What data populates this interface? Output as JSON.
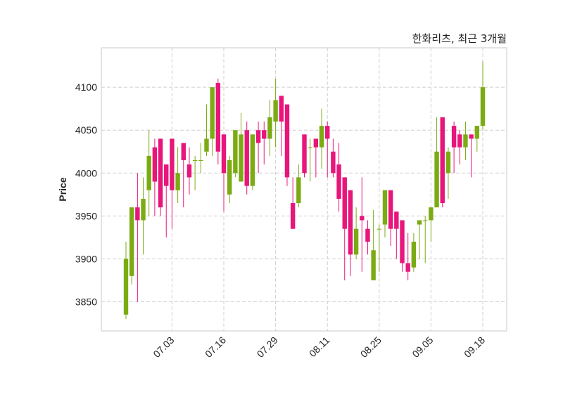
{
  "chart_data": {
    "type": "candlestick",
    "title": "한화리츠, 최근 3개월",
    "xlabel": "",
    "ylabel": "Price",
    "ylim": [
      3816,
      4146
    ],
    "yticks": [
      3850,
      3900,
      3950,
      4000,
      4050,
      4100
    ],
    "xtick_labels": [
      {
        "index": 8,
        "label": "07.03"
      },
      {
        "index": 17,
        "label": "07.16"
      },
      {
        "index": 26,
        "label": "07.29"
      },
      {
        "index": 35,
        "label": "08.11"
      },
      {
        "index": 44,
        "label": "08.25"
      },
      {
        "index": 53,
        "label": "09.05"
      },
      {
        "index": 62,
        "label": "09.18"
      }
    ],
    "grid": true,
    "colors": {
      "up": "#7bab12",
      "down": "#e8157b"
    },
    "candles_ohlc": [
      [
        3835,
        3920,
        3830,
        3900
      ],
      [
        3880,
        3960,
        3870,
        3960
      ],
      [
        3960,
        4000,
        3850,
        3945
      ],
      [
        3945,
        3995,
        3905,
        3970
      ],
      [
        3980,
        4050,
        3950,
        4020
      ],
      [
        4030,
        4040,
        3950,
        3990
      ],
      [
        4040,
        4040,
        3950,
        3960
      ],
      [
        4010,
        4010,
        3925,
        3985
      ],
      [
        4040,
        4040,
        3935,
        3980
      ],
      [
        3980,
        4030,
        3965,
        4000
      ],
      [
        4035,
        4035,
        3960,
        4015
      ],
      [
        4010,
        4030,
        3975,
        3995
      ],
      [
        4015,
        4020,
        3980,
        4015
      ],
      [
        4015,
        4035,
        4000,
        4015
      ],
      [
        4025,
        4080,
        4020,
        4040
      ],
      [
        4040,
        4100,
        4020,
        4100
      ],
      [
        4105,
        4110,
        4010,
        4025
      ],
      [
        4045,
        4045,
        3955,
        4000
      ],
      [
        3975,
        4020,
        3965,
        4015
      ],
      [
        4000,
        4050,
        3995,
        4050
      ],
      [
        3990,
        4070,
        3990,
        4045
      ],
      [
        4050,
        4060,
        3975,
        3985
      ],
      [
        3985,
        4045,
        3980,
        4045
      ],
      [
        4050,
        4060,
        4000,
        4035
      ],
      [
        4050,
        4060,
        4010,
        4040
      ],
      [
        4040,
        4085,
        4020,
        4065
      ],
      [
        4060,
        4110,
        4030,
        4085
      ],
      [
        4090,
        4090,
        4020,
        4060
      ],
      [
        4080,
        4080,
        3985,
        3995
      ],
      [
        3965,
        3995,
        3935,
        3935
      ],
      [
        3965,
        4010,
        3960,
        3995
      ],
      [
        4045,
        4045,
        3995,
        4000
      ],
      [
        4030,
        4040,
        3990,
        4030
      ],
      [
        4040,
        4040,
        3995,
        4030
      ],
      [
        4030,
        4075,
        4005,
        4055
      ],
      [
        4055,
        4060,
        3995,
        4040
      ],
      [
        4025,
        4040,
        3995,
        4000
      ],
      [
        4010,
        4035,
        3955,
        3970
      ],
      [
        3995,
        3995,
        3875,
        3935
      ],
      [
        3980,
        3980,
        3880,
        3905
      ],
      [
        3905,
        3960,
        3900,
        3935
      ],
      [
        3950,
        3995,
        3885,
        3945
      ],
      [
        3935,
        3945,
        3905,
        3920
      ],
      [
        3875,
        3957,
        3875,
        3910
      ],
      [
        3935,
        3940,
        3885,
        3935
      ],
      [
        3940,
        3980,
        3925,
        3980
      ],
      [
        3980,
        3980,
        3915,
        3935
      ],
      [
        3955,
        3955,
        3900,
        3935
      ],
      [
        3945,
        3945,
        3885,
        3895
      ],
      [
        3895,
        3930,
        3875,
        3885
      ],
      [
        3890,
        3930,
        3885,
        3920
      ],
      [
        3940,
        3945,
        3900,
        3945
      ],
      [
        3945,
        3950,
        3895,
        3945
      ],
      [
        3945,
        3960,
        3920,
        3960
      ],
      [
        3960,
        4065,
        3960,
        4025
      ],
      [
        4065,
        4065,
        3960,
        3965
      ],
      [
        4000,
        4030,
        3970,
        4025
      ],
      [
        4055,
        4060,
        4000,
        4030
      ],
      [
        4045,
        4050,
        4010,
        4030
      ],
      [
        4030,
        4060,
        4015,
        4045
      ],
      [
        4045,
        4045,
        3995,
        4040
      ],
      [
        4040,
        4055,
        4025,
        4055
      ],
      [
        4055,
        4130,
        4050,
        4100
      ]
    ]
  }
}
